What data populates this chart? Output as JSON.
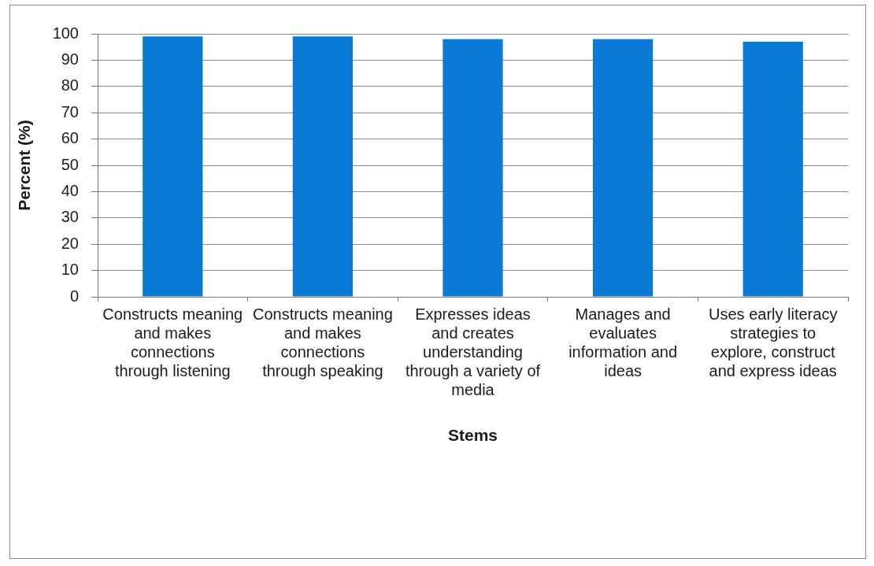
{
  "chart_data": {
    "type": "bar",
    "xlabel": "Stems",
    "ylabel": "Percent (%)",
    "categories": [
      "Constructs meaning and makes connections through listening",
      "Constructs meaning and makes connections through speaking",
      "Expresses ideas and creates understanding through a variety of media",
      "Manages and evaluates information and ideas",
      "Uses early literacy strategies to explore, construct and express ideas"
    ],
    "values": [
      99,
      99,
      98,
      98,
      97
    ],
    "color": "#0a7ad6",
    "ylim": [
      0,
      100
    ],
    "yticks": [
      0,
      10,
      20,
      30,
      40,
      50,
      60,
      70,
      80,
      90,
      100
    ],
    "grid": "y"
  }
}
